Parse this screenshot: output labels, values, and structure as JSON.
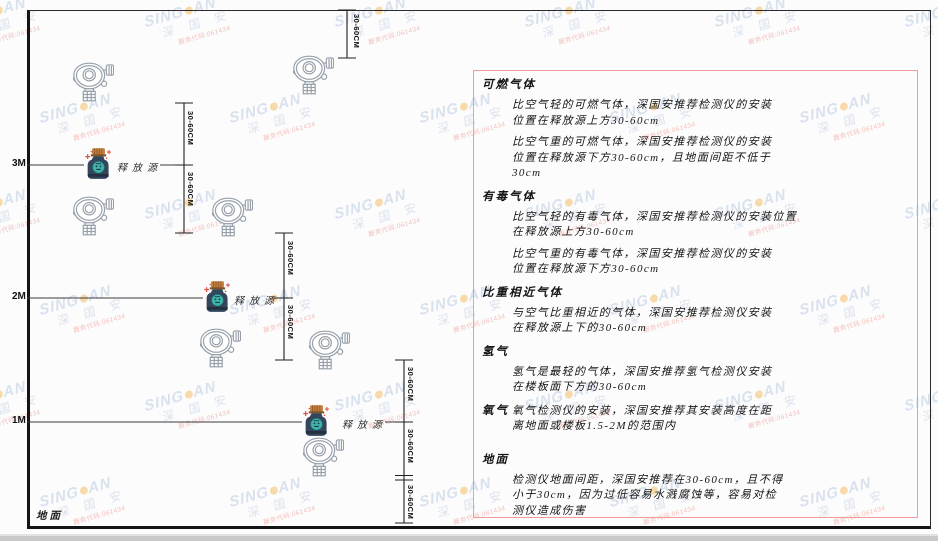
{
  "watermark": {
    "brand_left": "SING",
    "brand_right": "AN",
    "brand_cjk": "深 国 安",
    "brand_red": "服务代码:061434"
  },
  "diagram": {
    "levels": [
      {
        "label": "3M"
      },
      {
        "label": "2M"
      },
      {
        "label": "1M"
      }
    ],
    "ground_label": "地面",
    "release_source_label": "释放源",
    "dim_label": "30-60CM"
  },
  "panel": {
    "sections": [
      {
        "heading": "可燃气体",
        "paragraphs": [
          [
            "比空气轻的可燃气体，深国安推荐检测仪的安装",
            "位置在释放源上方30-60cm"
          ],
          [
            "比空气重的可燃气体，深国安推荐检测仪的安装",
            "位置在释放源下方30-60cm，且地面间距不低于",
            "30cm"
          ]
        ]
      },
      {
        "heading": "有毒气体",
        "paragraphs": [
          [
            "比空气轻的有毒气体，深国安推荐检测仪的安装位置",
            "在释放源上方30-60cm"
          ],
          [
            "比空气重的有毒气体，深国安推荐检测仪的安装",
            "位置在释放源下方30-60cm"
          ]
        ]
      },
      {
        "heading": "比重相近气体",
        "paragraphs": [
          [
            "与空气比重相近的气体，深国安推荐检测仪安装",
            "在释放源上下的30-60cm"
          ]
        ]
      },
      {
        "heading": "氢气",
        "paragraphs": [
          [
            "氢气是最轻的气体，深国安推荐氢气检测仪安装",
            "在楼板面下方的30-60cm"
          ]
        ]
      },
      {
        "heading": "氧气",
        "inline": true,
        "paragraphs": [
          [
            "氧气检测仪的安装，深国安推荐其安装高度在距",
            "离地面或楼板1.5-2M的范围内"
          ]
        ]
      },
      {
        "heading": "地面",
        "gap_big": true,
        "paragraphs": [
          [
            "检测仪地面间距，深国安推荐在30-60cm，且不得",
            "小于30cm，因为过低容易水溅腐蚀等，容易对检",
            "测仪造成伤害"
          ]
        ]
      }
    ]
  }
}
